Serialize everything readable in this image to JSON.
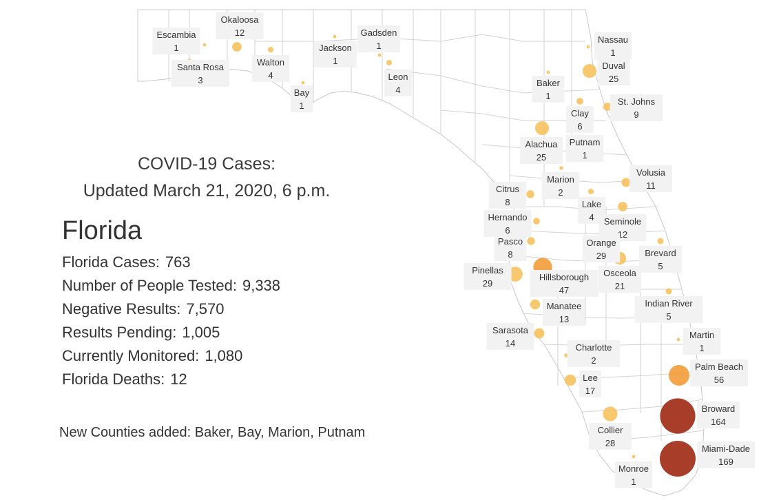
{
  "header": {
    "line1": "COVID-19 Cases:",
    "line2": "Updated March 21, 2020, 6 p.m."
  },
  "state_name": "Florida",
  "stats": [
    {
      "label": "Florida Cases:",
      "value": "763"
    },
    {
      "label": "Number of People Tested:",
      "value": "9,338"
    },
    {
      "label": "Negative Results:",
      "value": "7,570"
    },
    {
      "label": "Results Pending:",
      "value": "1,005"
    },
    {
      "label": "Currently Monitored:",
      "value": "1,080"
    },
    {
      "label": "Florida Deaths:",
      "value": "12"
    }
  ],
  "new_counties": "New Counties added:  Baker, Bay, Marion, Putnam",
  "colors": {
    "low": "#f6c05a",
    "mid": "#f39a33",
    "high": "#a3341f",
    "county_border": "#c8c8c8",
    "label_bg": "#f2f2f2"
  },
  "counties": [
    {
      "name": "Escambia",
      "count": 1
    },
    {
      "name": "Okaloosa",
      "count": 12
    },
    {
      "name": "Santa Rosa",
      "count": 3
    },
    {
      "name": "Walton",
      "count": 4
    },
    {
      "name": "Bay",
      "count": 1
    },
    {
      "name": "Jackson",
      "count": 1
    },
    {
      "name": "Gadsden",
      "count": 1
    },
    {
      "name": "Leon",
      "count": 4
    },
    {
      "name": "Nassau",
      "count": 1
    },
    {
      "name": "Duval",
      "count": 25
    },
    {
      "name": "Baker",
      "count": 1
    },
    {
      "name": "St. Johns",
      "count": 9
    },
    {
      "name": "Clay",
      "count": 6
    },
    {
      "name": "Alachua",
      "count": 25
    },
    {
      "name": "Putnam",
      "count": 1
    },
    {
      "name": "Volusia",
      "count": 11
    },
    {
      "name": "Marion",
      "count": 2
    },
    {
      "name": "Citrus",
      "count": 8
    },
    {
      "name": "Lake",
      "count": 4
    },
    {
      "name": "Hernando",
      "count": 6
    },
    {
      "name": "Seminole",
      "count": 12
    },
    {
      "name": "Pasco",
      "count": 8
    },
    {
      "name": "Orange",
      "count": 29
    },
    {
      "name": "Brevard",
      "count": 5
    },
    {
      "name": "Pinellas",
      "count": 29
    },
    {
      "name": "Hillsborough",
      "count": 47
    },
    {
      "name": "Osceola",
      "count": 21
    },
    {
      "name": "Manatee",
      "count": 13
    },
    {
      "name": "Indian River",
      "count": 5
    },
    {
      "name": "Sarasota",
      "count": 14
    },
    {
      "name": "Martin",
      "count": 1
    },
    {
      "name": "Charlotte",
      "count": 2
    },
    {
      "name": "Palm Beach",
      "count": 56
    },
    {
      "name": "Lee",
      "count": 17
    },
    {
      "name": "Broward",
      "count": 164
    },
    {
      "name": "Collier",
      "count": 28
    },
    {
      "name": "Miami-Dade",
      "count": 169
    },
    {
      "name": "Monroe",
      "count": 1
    }
  ]
}
